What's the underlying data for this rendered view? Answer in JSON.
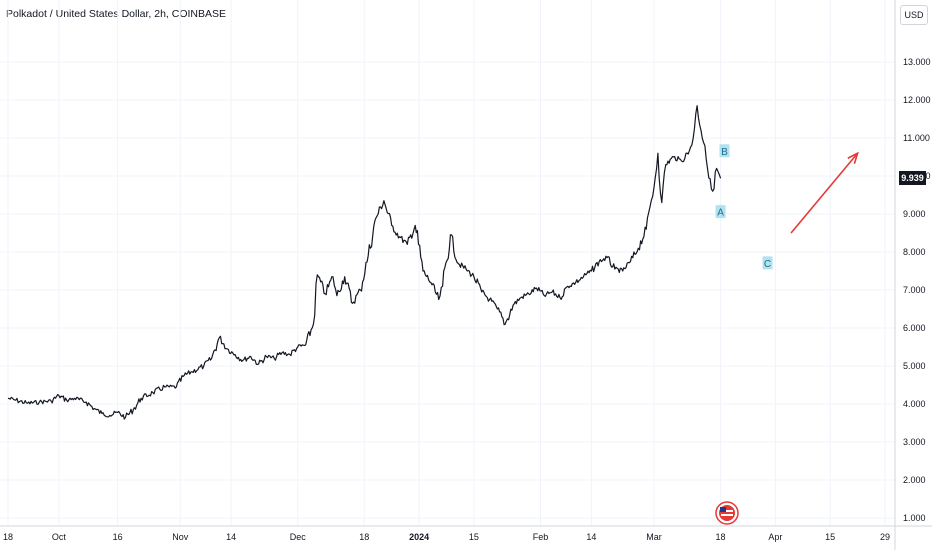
{
  "header": {
    "title": "Polkadot / United States Dollar, 2h, COINBASE",
    "currency": "USD",
    "last_price": "9.939"
  },
  "colors": {
    "price_line": "#131722",
    "arrow": "#e53935",
    "wave_label_bg": "#b2e1f0",
    "wave_label_text": "#1e6f8c"
  },
  "chart_data": {
    "type": "line",
    "ylim": [
      1,
      14
    ],
    "yticks": [
      "1.000",
      "2.000",
      "3.000",
      "4.000",
      "5.000",
      "6.000",
      "7.000",
      "8.000",
      "9.000",
      "10.000",
      "11.000",
      "12.000",
      "13.000"
    ],
    "xticks": [
      {
        "label": "18",
        "date": "2023-09-18"
      },
      {
        "label": "Oct",
        "date": "2023-10-01"
      },
      {
        "label": "16",
        "date": "2023-10-16"
      },
      {
        "label": "Nov",
        "date": "2023-11-01"
      },
      {
        "label": "14",
        "date": "2023-11-14"
      },
      {
        "label": "Dec",
        "date": "2023-12-01"
      },
      {
        "label": "18",
        "date": "2023-12-18"
      },
      {
        "label": "2024",
        "date": "2024-01-01",
        "bold": true
      },
      {
        "label": "15",
        "date": "2024-01-15"
      },
      {
        "label": "Feb",
        "date": "2024-02-01"
      },
      {
        "label": "14",
        "date": "2024-02-14"
      },
      {
        "label": "Mar",
        "date": "2024-03-01"
      },
      {
        "label": "18",
        "date": "2024-03-18"
      },
      {
        "label": "Apr",
        "date": "2024-04-01"
      },
      {
        "label": "15",
        "date": "2024-04-15"
      },
      {
        "label": "29",
        "date": "2024-04-29"
      }
    ],
    "series": [
      {
        "points": [
          [
            "2023-09-18",
            4.15
          ],
          [
            "2023-09-20",
            4.1
          ],
          [
            "2023-09-23",
            4.02
          ],
          [
            "2023-09-26",
            4.05
          ],
          [
            "2023-09-29",
            4.08
          ],
          [
            "2023-10-01",
            4.22
          ],
          [
            "2023-10-03",
            4.1
          ],
          [
            "2023-10-05",
            4.15
          ],
          [
            "2023-10-08",
            4.05
          ],
          [
            "2023-10-10",
            3.88
          ],
          [
            "2023-10-12",
            3.75
          ],
          [
            "2023-10-14",
            3.7
          ],
          [
            "2023-10-16",
            3.78
          ],
          [
            "2023-10-18",
            3.65
          ],
          [
            "2023-10-20",
            3.85
          ],
          [
            "2023-10-22",
            4.15
          ],
          [
            "2023-10-25",
            4.3
          ],
          [
            "2023-10-28",
            4.45
          ],
          [
            "2023-10-31",
            4.45
          ],
          [
            "2023-11-02",
            4.75
          ],
          [
            "2023-11-04",
            4.85
          ],
          [
            "2023-11-07",
            5.0
          ],
          [
            "2023-11-09",
            5.2
          ],
          [
            "2023-11-11",
            5.75
          ],
          [
            "2023-11-13",
            5.45
          ],
          [
            "2023-11-15",
            5.3
          ],
          [
            "2023-11-17",
            5.15
          ],
          [
            "2023-11-19",
            5.25
          ],
          [
            "2023-11-21",
            5.05
          ],
          [
            "2023-11-23",
            5.25
          ],
          [
            "2023-11-25",
            5.2
          ],
          [
            "2023-11-27",
            5.35
          ],
          [
            "2023-11-29",
            5.3
          ],
          [
            "2023-12-01",
            5.5
          ],
          [
            "2023-12-03",
            5.55
          ],
          [
            "2023-12-05",
            6.1
          ],
          [
            "2023-12-06",
            7.4
          ],
          [
            "2023-12-08",
            6.9
          ],
          [
            "2023-12-10",
            7.35
          ],
          [
            "2023-12-11",
            6.85
          ],
          [
            "2023-12-13",
            7.35
          ],
          [
            "2023-12-15",
            6.65
          ],
          [
            "2023-12-17",
            7.0
          ],
          [
            "2023-12-19",
            7.9
          ],
          [
            "2023-12-21",
            8.9
          ],
          [
            "2023-12-23",
            9.35
          ],
          [
            "2023-12-25",
            8.7
          ],
          [
            "2023-12-27",
            8.4
          ],
          [
            "2023-12-29",
            8.2
          ],
          [
            "2023-12-31",
            8.7
          ],
          [
            "2024-01-02",
            7.5
          ],
          [
            "2024-01-04",
            7.2
          ],
          [
            "2024-01-06",
            6.75
          ],
          [
            "2024-01-07",
            7.1
          ],
          [
            "2024-01-09",
            8.45
          ],
          [
            "2024-01-11",
            7.7
          ],
          [
            "2024-01-13",
            7.55
          ],
          [
            "2024-01-15",
            7.35
          ],
          [
            "2024-01-17",
            6.95
          ],
          [
            "2024-01-19",
            6.75
          ],
          [
            "2024-01-21",
            6.5
          ],
          [
            "2024-01-23",
            6.1
          ],
          [
            "2024-01-25",
            6.6
          ],
          [
            "2024-01-27",
            6.8
          ],
          [
            "2024-01-29",
            6.9
          ],
          [
            "2024-01-31",
            7.05
          ],
          [
            "2024-02-02",
            6.85
          ],
          [
            "2024-02-04",
            6.95
          ],
          [
            "2024-02-06",
            6.8
          ],
          [
            "2024-02-08",
            7.1
          ],
          [
            "2024-02-10",
            7.2
          ],
          [
            "2024-02-12",
            7.35
          ],
          [
            "2024-02-14",
            7.5
          ],
          [
            "2024-02-16",
            7.75
          ],
          [
            "2024-02-18",
            7.85
          ],
          [
            "2024-02-20",
            7.55
          ],
          [
            "2024-02-22",
            7.5
          ],
          [
            "2024-02-24",
            7.75
          ],
          [
            "2024-02-26",
            8.1
          ],
          [
            "2024-02-28",
            8.6
          ],
          [
            "2024-02-29",
            9.2
          ],
          [
            "2024-03-01",
            9.7
          ],
          [
            "2024-03-02",
            10.6
          ],
          [
            "2024-03-03",
            9.3
          ],
          [
            "2024-03-04",
            10.3
          ],
          [
            "2024-03-06",
            10.5
          ],
          [
            "2024-03-08",
            10.4
          ],
          [
            "2024-03-10",
            10.65
          ],
          [
            "2024-03-11",
            11.0
          ],
          [
            "2024-03-12",
            11.85
          ],
          [
            "2024-03-13",
            11.2
          ],
          [
            "2024-03-14",
            10.8
          ],
          [
            "2024-03-15",
            9.95
          ],
          [
            "2024-03-16",
            9.6
          ],
          [
            "2024-03-17",
            10.2
          ],
          [
            "2024-03-18",
            9.939
          ]
        ]
      }
    ],
    "wave_labels": [
      {
        "text": "A",
        "date": "2024-03-18",
        "price": 9.05
      },
      {
        "text": "B",
        "date": "2024-03-19",
        "price": 10.65
      },
      {
        "text": "C",
        "date": "2024-03-30",
        "price": 7.7
      }
    ],
    "arrow": {
      "from": {
        "date": "2024-04-05",
        "price": 8.5
      },
      "to": {
        "date": "2024-04-22",
        "price": 10.6
      }
    },
    "grid": true
  }
}
